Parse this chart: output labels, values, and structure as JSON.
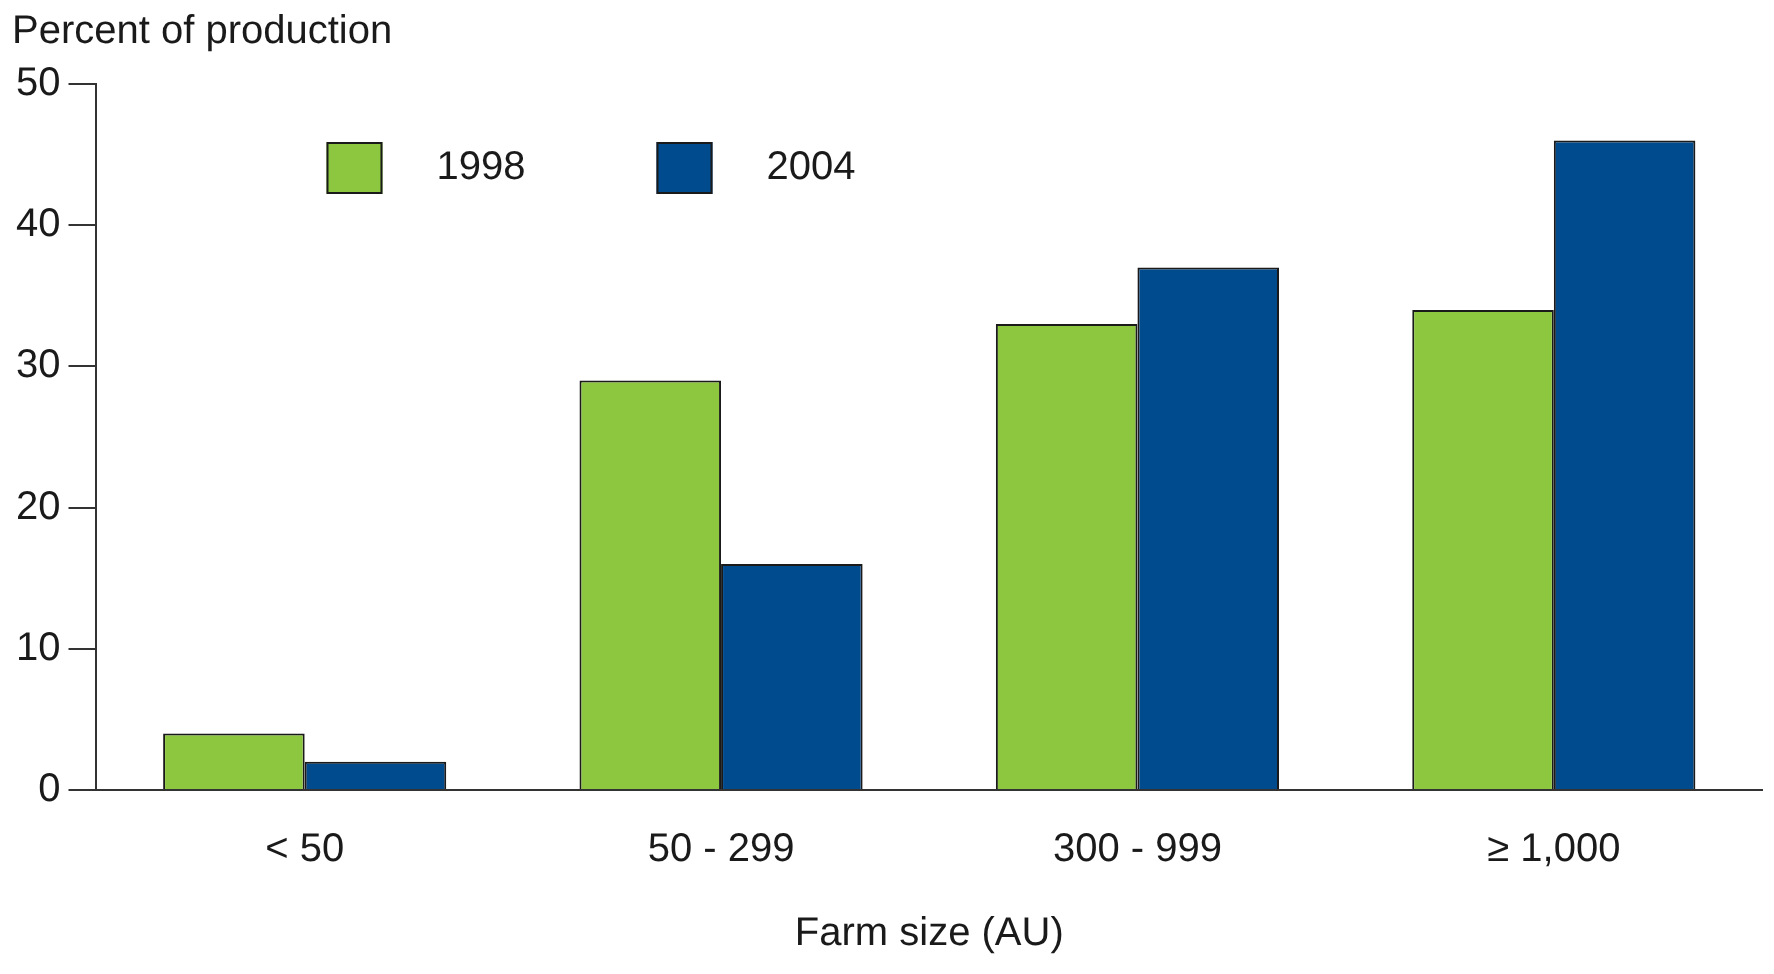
{
  "chart_data": {
    "type": "bar",
    "ylabel": "Percent of production",
    "xlabel": "Farm size (AU)",
    "categories": [
      "< 50",
      "50 - 299",
      "300 - 999",
      "≥ 1,000"
    ],
    "series": [
      {
        "name": "1998",
        "color": "#8dc63f",
        "values": [
          4,
          29,
          33,
          34
        ]
      },
      {
        "name": "2004",
        "color": "#004b8d",
        "values": [
          2,
          16,
          37,
          46
        ]
      }
    ],
    "ylim": [
      0,
      50
    ],
    "yticks": [
      0,
      10,
      20,
      30,
      40,
      50
    ],
    "grid": false,
    "legend": "top left"
  }
}
